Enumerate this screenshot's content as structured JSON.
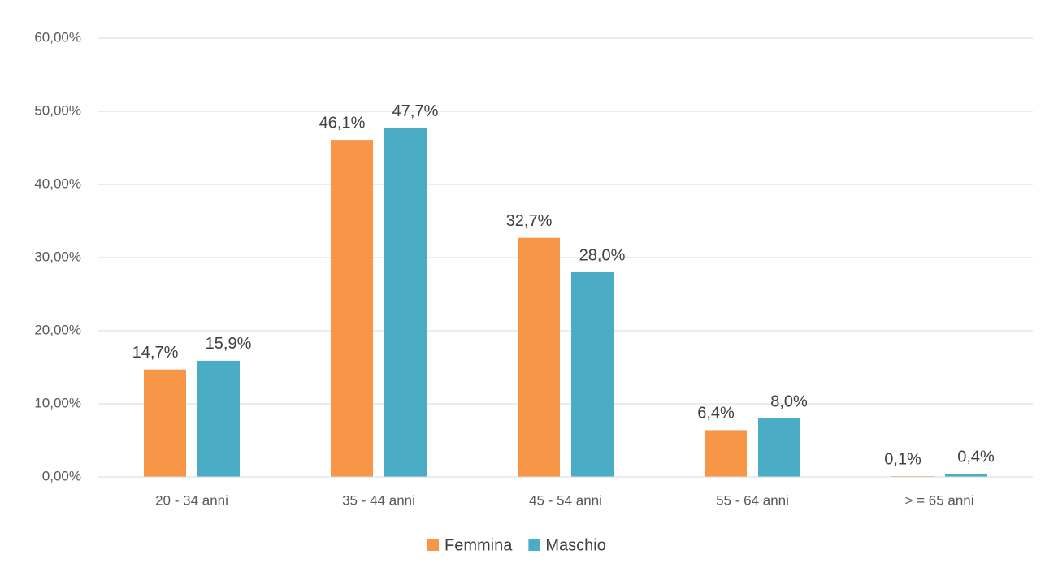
{
  "chart_data": {
    "type": "bar",
    "categories": [
      "20 - 34 anni",
      "35 - 44 anni",
      "45 - 54 anni",
      "55 - 64 anni",
      "> = 65 anni"
    ],
    "series": [
      {
        "name": "Femmina",
        "color": "#f79646",
        "values": [
          14.7,
          46.1,
          32.7,
          6.4,
          0.1
        ],
        "value_labels": [
          "14,7%",
          "46,1%",
          "32,7%",
          "6,4%",
          "0,1%"
        ]
      },
      {
        "name": "Maschio",
        "color": "#4bacc6",
        "values": [
          15.9,
          47.7,
          28.0,
          8.0,
          0.4
        ],
        "value_labels": [
          "15,9%",
          "47,7%",
          "28,0%",
          "8,0%",
          "0,4%"
        ]
      }
    ],
    "ylim": [
      0,
      60
    ],
    "yticks": [
      {
        "value": 0,
        "label": "0,00%"
      },
      {
        "value": 10,
        "label": "10,00%"
      },
      {
        "value": 20,
        "label": "20,00%"
      },
      {
        "value": 30,
        "label": "30,00%"
      },
      {
        "value": 40,
        "label": "40,00%"
      },
      {
        "value": 50,
        "label": "50,00%"
      },
      {
        "value": 60,
        "label": "60,00%"
      }
    ],
    "grid": true,
    "legend": "bottom"
  }
}
